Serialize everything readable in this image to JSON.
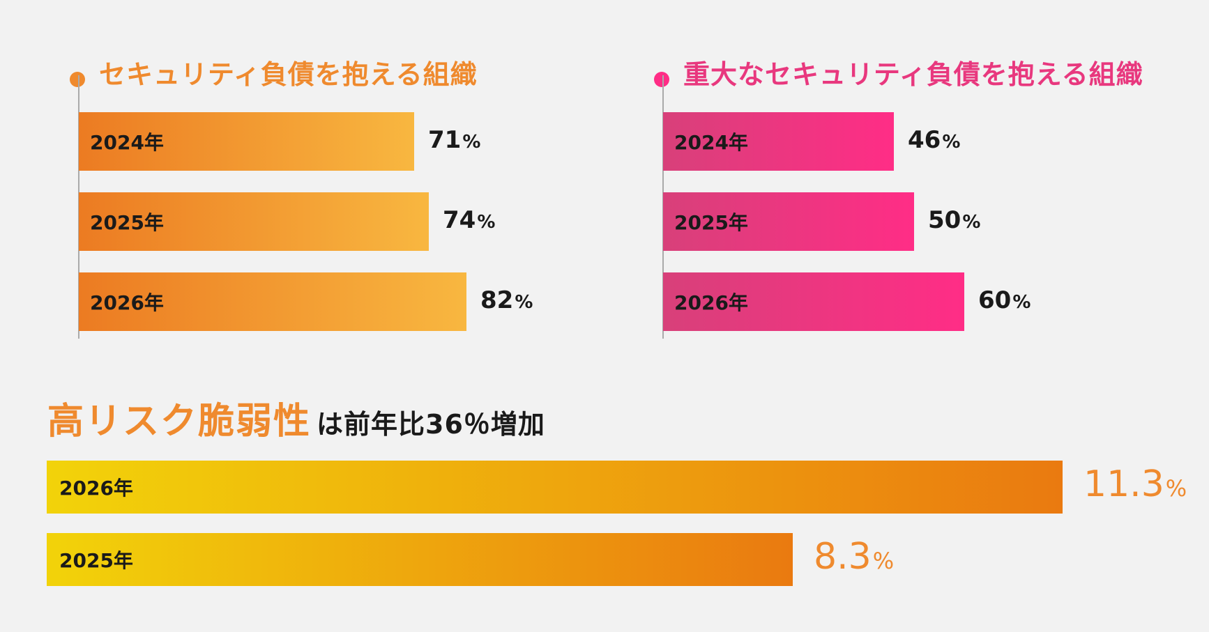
{
  "chart_data": [
    {
      "type": "bar",
      "orientation": "horizontal",
      "title": "セキュリティ負債を抱える組織",
      "categories": [
        "2024年",
        "2025年",
        "2026年"
      ],
      "values": [
        71,
        74,
        82
      ],
      "unit": "%",
      "colors": {
        "accent": "#ef8a2e",
        "bar_start": "#ec7b22",
        "bar_end": "#f8b740"
      }
    },
    {
      "type": "bar",
      "orientation": "horizontal",
      "title": "重大なセキュリティ負債を抱える組織",
      "categories": [
        "2024年",
        "2025年",
        "2026年"
      ],
      "values": [
        46,
        50,
        60
      ],
      "unit": "%",
      "colors": {
        "accent": "#e8387e",
        "bar_start": "#d8407a",
        "bar_end": "#ff2d86"
      }
    },
    {
      "type": "bar",
      "orientation": "horizontal",
      "title": "高リスク脆弱性",
      "subtitle": "は前年比36％増加",
      "categories": [
        "2026年",
        "2025年"
      ],
      "values": [
        11.3,
        8.3
      ],
      "unit": "%",
      "colors": {
        "accent": "#ef8a2e",
        "bar_start": "#f2d30a",
        "bar_end": "#ea7a10"
      }
    }
  ]
}
